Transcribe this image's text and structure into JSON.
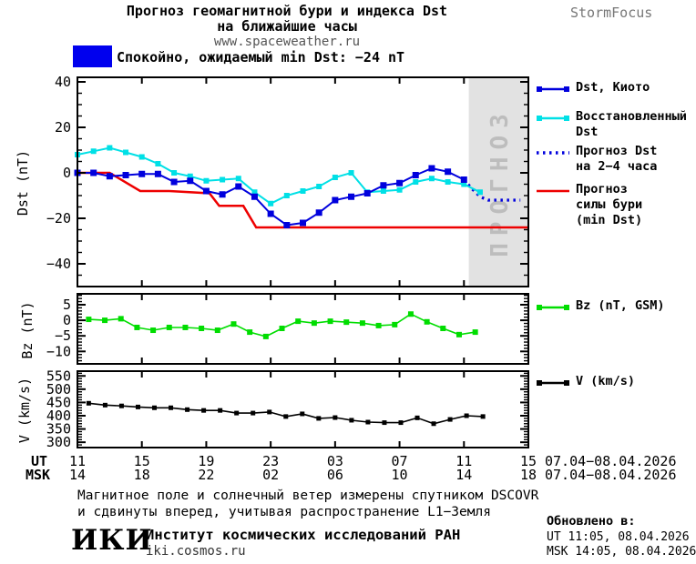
{
  "header": {
    "title_line1": "Прогноз геомагнитной бури и индекса Dst",
    "title_line2": "на ближайшие часы",
    "site": "www.spaceweather.ru",
    "brand": "StormFocus"
  },
  "banner": {
    "text": "Спокойно, ожидаемый min Dst: −24 nT",
    "color": "#0000ee"
  },
  "legends": {
    "dst": [
      {
        "lines": [
          "Dst, Киото"
        ],
        "color": "#0000dd",
        "style": "markers"
      },
      {
        "lines": [
          "Восстановленный",
          "Dst"
        ],
        "color": "#00e0e6",
        "style": "markers"
      },
      {
        "lines": [
          "Прогноз Dst",
          "на 2−4 часа"
        ],
        "color": "#0000dd",
        "style": "dotted"
      },
      {
        "lines": [
          "Прогноз",
          "силы бури",
          "(min Dst)"
        ],
        "color": "#ee0000",
        "style": "line"
      }
    ],
    "bz": [
      {
        "lines": [
          "Bz (nT, GSM)"
        ],
        "color": "#00dd00",
        "style": "markers"
      }
    ],
    "v": [
      {
        "lines": [
          "V (km/s)"
        ],
        "color": "#000000",
        "style": "markers"
      }
    ]
  },
  "xaxis": {
    "ut_label": "UT",
    "msk_label": "MSK",
    "ut_ticks": [
      "11",
      "15",
      "19",
      "23",
      "03",
      "07",
      "11",
      "15"
    ],
    "msk_ticks": [
      "14",
      "18",
      "22",
      "02",
      "06",
      "10",
      "14",
      "18"
    ],
    "ut_date": "07.04−08.04.2026",
    "msk_date": "07.04−08.04.2026",
    "hours_span": 28
  },
  "chart_data": [
    {
      "type": "line",
      "title": "Прогноз геомагнитной бури и индекса Dst",
      "ylabel": "Dst (nT)",
      "ylim": [
        -50,
        42
      ],
      "yticks": [
        40,
        20,
        0,
        -20,
        -40
      ],
      "minor_step": 5,
      "forecast_region": {
        "start_h": 24.3,
        "label": "ПРОГНОЗ",
        "fill": "#e2e2e2",
        "text_color": "#bdbdbd"
      },
      "series": [
        {
          "name": "Dst, Киото",
          "color": "#0000dd",
          "marker": 7,
          "width": 2,
          "h0": 0,
          "dh": 1,
          "values": [
            0,
            0,
            -1.5,
            -1,
            -0.5,
            -0.5,
            -4,
            -3.5,
            -8,
            -9.5,
            -6,
            -10.5,
            -18,
            -23,
            -22,
            -17.5,
            -12,
            -10.5,
            -9,
            -5.5,
            -4.5,
            -1,
            2,
            0.5,
            -3
          ]
        },
        {
          "name": "Восстановленный Dst",
          "color": "#00e0e6",
          "marker": 6,
          "width": 2,
          "h0": 0,
          "dh": 1,
          "values": [
            8,
            9.5,
            11,
            9,
            7,
            4,
            0,
            -1.5,
            -3.5,
            -3,
            -2.5,
            -8.5,
            -13.5,
            -10,
            -8,
            -6,
            -2,
            0,
            -8.5,
            -8,
            -7.5,
            -4,
            -2.5,
            -4,
            -5,
            -8.5
          ]
        },
        {
          "name": "Прогноз Dst на 2−4 часа",
          "color": "#0000dd",
          "style": "dotted",
          "width": 3.2,
          "points": [
            [
              24,
              -3
            ],
            [
              24.5,
              -7
            ],
            [
              25,
              -10.5
            ],
            [
              25.5,
              -12
            ],
            [
              27.5,
              -12
            ]
          ]
        },
        {
          "name": "Прогноз силы бури (min Dst)",
          "color": "#ee0000",
          "width": 2.5,
          "points": [
            [
              0,
              0
            ],
            [
              2,
              0
            ],
            [
              3.9,
              -8
            ],
            [
              5.7,
              -8
            ],
            [
              8.2,
              -9
            ],
            [
              8.8,
              -14.5
            ],
            [
              10.3,
              -14.5
            ],
            [
              11.1,
              -24
            ],
            [
              28,
              -24
            ]
          ]
        }
      ]
    },
    {
      "type": "line",
      "ylabel": "Bz (nT)",
      "ylim": [
        -14,
        8.5
      ],
      "yticks": [
        5,
        0,
        -5,
        -10
      ],
      "minor_step": 1,
      "series": [
        {
          "name": "Bz (nT, GSM)",
          "color": "#00dd00",
          "marker": 6,
          "width": 1.6,
          "h0": 0.7,
          "dh": 1,
          "values": [
            0.3,
            0,
            0.5,
            -2.3,
            -3.2,
            -2.3,
            -2.3,
            -2.6,
            -3.2,
            -1.2,
            -3.8,
            -5.2,
            -2.6,
            -0.3,
            -0.9,
            -0.3,
            -0.6,
            -0.9,
            -1.7,
            -1.4,
            2,
            -0.5,
            -2.6,
            -4.6,
            -3.8
          ]
        }
      ]
    },
    {
      "type": "line",
      "ylabel": "V (km/s)",
      "ylim": [
        280,
        568
      ],
      "yticks": [
        550,
        500,
        450,
        400,
        350,
        300
      ],
      "minor_step": 10,
      "series": [
        {
          "name": "V (km/s)",
          "color": "#000000",
          "marker": 5,
          "width": 1.6,
          "h0": 0.7,
          "dh": 1.02,
          "values": [
            447,
            440,
            437,
            433,
            430,
            430,
            423,
            420,
            420,
            410,
            410,
            414,
            397,
            407,
            390,
            393,
            383,
            376,
            374,
            374,
            392,
            370,
            386,
            400,
            397
          ]
        }
      ]
    }
  ],
  "footer": {
    "note_line1": "Магнитное поле и солнечный ветер измерены спутником DSCOVR",
    "note_line2": "и сдвинуты вперед, учитывая распространение L1−Земля",
    "logo": "ИКИ",
    "institute": "Институт космических исследований РАН",
    "site": "iki.cosmos.ru",
    "updated_label": "Обновлено в:",
    "updated_ut": "UT  11:05, 08.04.2026",
    "updated_msk": "MSK 14:05, 08.04.2026"
  }
}
